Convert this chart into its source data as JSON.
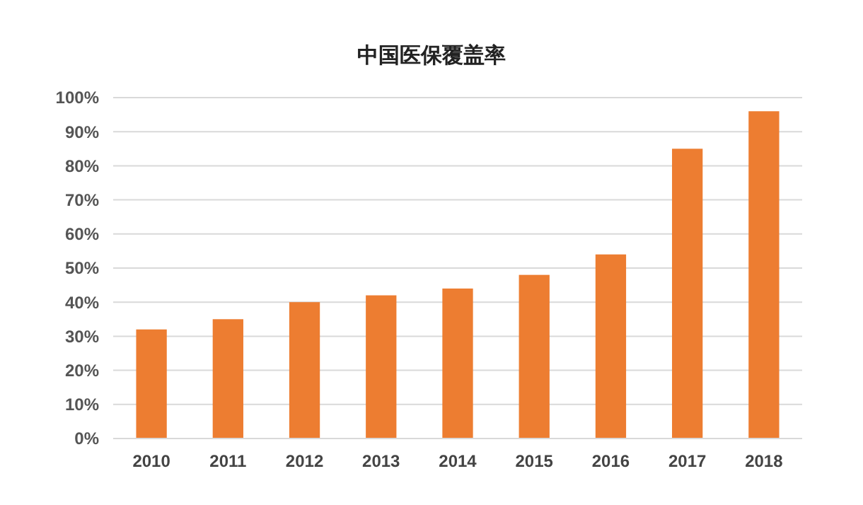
{
  "chart_data": {
    "type": "bar",
    "title": "中国医保覆盖率",
    "categories": [
      "2010",
      "2011",
      "2012",
      "2013",
      "2014",
      "2015",
      "2016",
      "2017",
      "2018"
    ],
    "values": [
      32,
      35,
      40,
      42,
      44,
      48,
      54,
      85,
      96
    ],
    "color": "#ed7d31",
    "ylim": [
      0,
      100
    ],
    "yticks": [
      {
        "value": 0,
        "label": "0%"
      },
      {
        "value": 10,
        "label": "10%"
      },
      {
        "value": 20,
        "label": "20%"
      },
      {
        "value": 30,
        "label": "30%"
      },
      {
        "value": 40,
        "label": "40%"
      },
      {
        "value": 50,
        "label": "50%"
      },
      {
        "value": 60,
        "label": "60%"
      },
      {
        "value": 70,
        "label": "70%"
      },
      {
        "value": 80,
        "label": "80%"
      },
      {
        "value": 90,
        "label": "90%"
      },
      {
        "value": 100,
        "label": "100%"
      }
    ],
    "grid": "y"
  }
}
